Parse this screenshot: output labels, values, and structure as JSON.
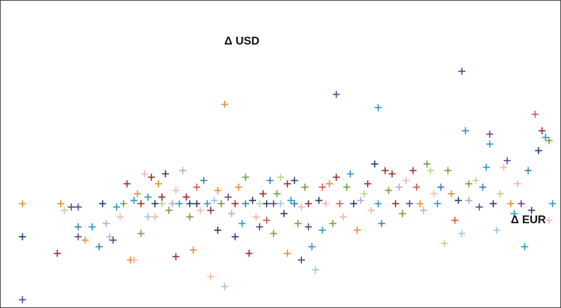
{
  "chart_data": {
    "type": "scatter",
    "title": "",
    "xlabel": "Δ EUR",
    "ylabel": "Δ USD",
    "xlim": [
      -0.275,
      0.515
    ],
    "ylim": [
      -0.15,
      0.3
    ],
    "grid": false,
    "legend": "none",
    "marker": "plus",
    "colors": [
      "#1f3a6e",
      "#9b2a2a",
      "#6f9c3a",
      "#5d3f8a",
      "#1f9bc4",
      "#f08a24",
      "#9cc3e6",
      "#f4b6a8",
      "#b8d38e",
      "#b9a6d3",
      "#2e7fb5",
      "#d9534f"
    ],
    "series": [
      {
        "name": "",
        "points": [
          [
            -0.25,
            0.0,
            5
          ],
          [
            -0.25,
            -0.05,
            0
          ],
          [
            -0.25,
            -0.145,
            3
          ],
          [
            -0.2,
            -0.075,
            1
          ],
          [
            -0.195,
            0.0,
            5
          ],
          [
            -0.19,
            -0.01,
            8
          ],
          [
            -0.18,
            -0.005,
            3
          ],
          [
            -0.17,
            -0.005,
            3
          ],
          [
            -0.17,
            -0.035,
            10
          ],
          [
            -0.17,
            -0.05,
            3
          ],
          [
            -0.16,
            -0.055,
            5
          ],
          [
            -0.15,
            -0.035,
            4
          ],
          [
            -0.14,
            -0.065,
            10
          ],
          [
            -0.135,
            0.0,
            0
          ],
          [
            -0.13,
            -0.03,
            9
          ],
          [
            -0.125,
            -0.05,
            6
          ],
          [
            -0.12,
            -0.055,
            3
          ],
          [
            -0.115,
            -0.005,
            4
          ],
          [
            -0.11,
            -0.02,
            7
          ],
          [
            -0.105,
            0.0,
            2
          ],
          [
            -0.1,
            0.03,
            1
          ],
          [
            -0.095,
            -0.085,
            5
          ],
          [
            -0.09,
            0.005,
            4
          ],
          [
            -0.09,
            -0.085,
            7
          ],
          [
            -0.085,
            0.015,
            5
          ],
          [
            -0.08,
            0.0,
            1
          ],
          [
            -0.08,
            -0.045,
            2
          ],
          [
            -0.075,
            0.045,
            7
          ],
          [
            -0.07,
            0.01,
            4
          ],
          [
            -0.07,
            -0.02,
            6
          ],
          [
            -0.065,
            0.04,
            1
          ],
          [
            -0.06,
            0.0,
            0
          ],
          [
            -0.06,
            -0.02,
            7
          ],
          [
            -0.055,
            0.03,
            5
          ],
          [
            -0.05,
            0.0,
            8
          ],
          [
            -0.05,
            0.01,
            1
          ],
          [
            -0.045,
            0.045,
            0
          ],
          [
            -0.04,
            -0.01,
            2
          ],
          [
            -0.035,
            0.0,
            9
          ],
          [
            -0.03,
            0.02,
            7
          ],
          [
            -0.03,
            -0.08,
            1
          ],
          [
            -0.025,
            0.0,
            4
          ],
          [
            -0.02,
            0.05,
            9
          ],
          [
            -0.015,
            0.01,
            1
          ],
          [
            -0.01,
            0.0,
            0
          ],
          [
            -0.01,
            -0.02,
            2
          ],
          [
            -0.005,
            -0.07,
            5
          ],
          [
            0.0,
            0.0,
            0
          ],
          [
            0.0,
            0.025,
            11
          ],
          [
            0.005,
            -0.01,
            7
          ],
          [
            0.01,
            0.035,
            10
          ],
          [
            0.015,
            0.0,
            4
          ],
          [
            0.02,
            -0.01,
            1
          ],
          [
            0.02,
            -0.11,
            7
          ],
          [
            0.025,
            0.005,
            6
          ],
          [
            0.03,
            0.02,
            5
          ],
          [
            0.03,
            -0.04,
            0
          ],
          [
            0.035,
            0.0,
            2
          ],
          [
            0.04,
            0.15,
            5
          ],
          [
            0.04,
            -0.125,
            6
          ],
          [
            0.045,
            0.01,
            3
          ],
          [
            0.05,
            -0.015,
            9
          ],
          [
            0.055,
            -0.05,
            0
          ],
          [
            0.055,
            0.0,
            1
          ],
          [
            0.06,
            0.025,
            5
          ],
          [
            0.065,
            -0.03,
            4
          ],
          [
            0.07,
            0.0,
            10
          ],
          [
            0.07,
            0.04,
            2
          ],
          [
            0.075,
            -0.075,
            1
          ],
          [
            0.08,
            0.005,
            0
          ],
          [
            0.085,
            -0.02,
            7
          ],
          [
            0.09,
            0.0,
            8
          ],
          [
            0.09,
            -0.035,
            3
          ],
          [
            0.095,
            0.015,
            1
          ],
          [
            0.1,
            0.0,
            0
          ],
          [
            0.1,
            -0.025,
            11
          ],
          [
            0.105,
            0.035,
            10
          ],
          [
            0.11,
            0.0,
            3
          ],
          [
            0.11,
            -0.045,
            2
          ],
          [
            0.115,
            0.015,
            2
          ],
          [
            0.12,
            0.04,
            8
          ],
          [
            0.12,
            0.0,
            6
          ],
          [
            0.125,
            -0.015,
            0
          ],
          [
            0.13,
            0.03,
            1
          ],
          [
            0.13,
            -0.075,
            5
          ],
          [
            0.135,
            0.005,
            4
          ],
          [
            0.14,
            0.0,
            10
          ],
          [
            0.14,
            0.035,
            0
          ],
          [
            0.145,
            -0.03,
            2
          ],
          [
            0.15,
            -0.005,
            7
          ],
          [
            0.15,
            -0.085,
            3
          ],
          [
            0.155,
            0.025,
            2
          ],
          [
            0.16,
            0.0,
            1
          ],
          [
            0.16,
            -0.035,
            3
          ],
          [
            0.165,
            -0.065,
            4
          ],
          [
            0.17,
            -0.1,
            6
          ],
          [
            0.175,
            0.005,
            0
          ],
          [
            0.18,
            0.025,
            11
          ],
          [
            0.18,
            -0.04,
            4
          ],
          [
            0.185,
            0.0,
            7
          ],
          [
            0.19,
            0.03,
            5
          ],
          [
            0.195,
            -0.03,
            2
          ],
          [
            0.2,
            0.165,
            3
          ],
          [
            0.2,
            0.04,
            1
          ],
          [
            0.205,
            0.0,
            11
          ],
          [
            0.21,
            -0.02,
            7
          ],
          [
            0.215,
            0.025,
            2
          ],
          [
            0.22,
            0.045,
            4
          ],
          [
            0.225,
            0.0,
            0
          ],
          [
            0.23,
            -0.04,
            5
          ],
          [
            0.235,
            0.005,
            9
          ],
          [
            0.24,
            0.015,
            8
          ],
          [
            0.245,
            0.03,
            1
          ],
          [
            0.25,
            -0.01,
            7
          ],
          [
            0.255,
            0.06,
            0
          ],
          [
            0.26,
            0.145,
            4
          ],
          [
            0.26,
            0.0,
            4
          ],
          [
            0.265,
            -0.03,
            10
          ],
          [
            0.27,
            0.05,
            1
          ],
          [
            0.275,
            0.02,
            2
          ],
          [
            0.28,
            0.045,
            1
          ],
          [
            0.285,
            0.0,
            1
          ],
          [
            0.29,
            0.025,
            9
          ],
          [
            0.295,
            -0.015,
            2
          ],
          [
            0.3,
            0.035,
            7
          ],
          [
            0.305,
            0.0,
            3
          ],
          [
            0.31,
            0.05,
            1
          ],
          [
            0.315,
            0.025,
            11
          ],
          [
            0.32,
            0.0,
            5
          ],
          [
            0.325,
            -0.01,
            9
          ],
          [
            0.33,
            0.06,
            2
          ],
          [
            0.335,
            0.05,
            8
          ],
          [
            0.34,
            0.015,
            7
          ],
          [
            0.345,
            0.0,
            4
          ],
          [
            0.35,
            0.025,
            10
          ],
          [
            0.355,
            -0.06,
            8
          ],
          [
            0.36,
            0.05,
            2
          ],
          [
            0.365,
            0.015,
            5
          ],
          [
            0.37,
            -0.025,
            11
          ],
          [
            0.375,
            0.005,
            0
          ],
          [
            0.38,
            0.2,
            3
          ],
          [
            0.38,
            -0.045,
            6
          ],
          [
            0.385,
            0.11,
            4
          ],
          [
            0.39,
            0.03,
            2
          ],
          [
            0.39,
            0.005,
            9
          ],
          [
            0.4,
            0.035,
            8
          ],
          [
            0.405,
            -0.005,
            3
          ],
          [
            0.41,
            0.025,
            10
          ],
          [
            0.415,
            0.055,
            4
          ],
          [
            0.42,
            0.105,
            3
          ],
          [
            0.42,
            0.09,
            4
          ],
          [
            0.425,
            0.0,
            0
          ],
          [
            0.43,
            -0.04,
            6
          ],
          [
            0.435,
            0.015,
            8
          ],
          [
            0.44,
            0.055,
            7
          ],
          [
            0.445,
            0.065,
            3
          ],
          [
            0.45,
            0.0,
            5
          ],
          [
            0.455,
            -0.015,
            4
          ],
          [
            0.46,
            0.03,
            7
          ],
          [
            0.465,
            0.0,
            3
          ],
          [
            0.47,
            -0.065,
            4
          ],
          [
            0.475,
            0.05,
            10
          ],
          [
            0.48,
            -0.01,
            0
          ],
          [
            0.485,
            0.135,
            11
          ],
          [
            0.49,
            0.08,
            0
          ],
          [
            0.495,
            0.11,
            1
          ],
          [
            0.5,
            0.1,
            4
          ],
          [
            0.505,
            0.095,
            2
          ],
          [
            0.505,
            -0.025,
            7
          ],
          [
            0.51,
            0.0,
            4
          ]
        ]
      }
    ]
  }
}
